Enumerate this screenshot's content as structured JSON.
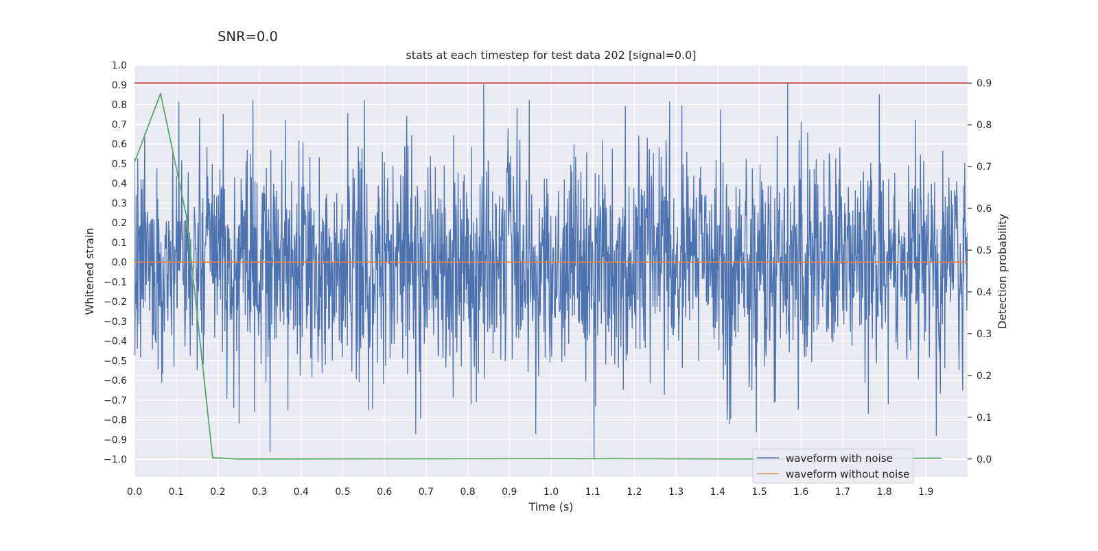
{
  "header": {
    "snr_label": "SNR=0.0"
  },
  "chart_data": {
    "type": "line",
    "title": "stats at each timestep for test data 202 [signal=0.0]",
    "xlabel": "Time (s)",
    "ylabel": "Whitened strain",
    "y2label": "Detection probability",
    "xlim": [
      0.0,
      2.0
    ],
    "ylim": [
      -1.09,
      1.0
    ],
    "y2lim": [
      -0.043,
      0.943
    ],
    "x_ticks": [
      0.0,
      0.1,
      0.2,
      0.3,
      0.4,
      0.5,
      0.6,
      0.7,
      0.8,
      0.9,
      1.0,
      1.1,
      1.2,
      1.3,
      1.4,
      1.5,
      1.6,
      1.7,
      1.8,
      1.9
    ],
    "x_tick_labels": [
      "0.0",
      "0.1",
      "0.2",
      "0.3",
      "0.4",
      "0.5",
      "0.6",
      "0.7",
      "0.8",
      "0.9",
      "1.0",
      "1.1",
      "1.2",
      "1.3",
      "1.4",
      "1.5",
      "1.6",
      "1.7",
      "1.8",
      "1.9"
    ],
    "y_ticks": [
      1.0,
      0.9,
      0.8,
      0.7,
      0.6,
      0.5,
      0.4,
      0.3,
      0.2,
      0.1,
      0.0,
      -0.1,
      -0.2,
      -0.3,
      -0.4,
      -0.5,
      -0.6,
      -0.7,
      -0.8,
      -0.9,
      -1.0
    ],
    "y_tick_labels": [
      "1.0",
      "0.9",
      "0.8",
      "0.7",
      "0.6",
      "0.5",
      "0.4",
      "0.3",
      "0.2",
      "0.1",
      "0.0",
      "−0.1",
      "−0.2",
      "−0.3",
      "−0.4",
      "−0.5",
      "−0.6",
      "−0.7",
      "−0.8",
      "−0.9",
      "−1.0"
    ],
    "y2_ticks": [
      0.9,
      0.8,
      0.7,
      0.6,
      0.5,
      0.4,
      0.3,
      0.2,
      0.1,
      0.0
    ],
    "y2_tick_labels": [
      "0.9",
      "0.8",
      "0.7",
      "0.6",
      "0.5",
      "0.4",
      "0.3",
      "0.2",
      "0.1",
      "0.0"
    ],
    "threshold": {
      "value": 0.9,
      "axis": "right",
      "color": "#c44e52"
    },
    "series": [
      {
        "name": "waveform with noise",
        "axis": "left",
        "color": "#4c72b0",
        "generator": "noise",
        "n_samples": 2048,
        "x_range": [
          0.0,
          2.0
        ],
        "std": 0.27,
        "seed": 202,
        "peaks": [
          {
            "x": 0.838,
            "y": 0.9
          },
          {
            "x": 1.568,
            "y": 0.91
          },
          {
            "x": 0.918,
            "y": 0.78
          },
          {
            "x": 1.788,
            "y": 0.85
          },
          {
            "x": 0.213,
            "y": 0.75
          },
          {
            "x": 1.178,
            "y": 0.79
          },
          {
            "x": 0.362,
            "y": 0.72
          },
          {
            "x": 1.103,
            "y": -1.0
          },
          {
            "x": 0.325,
            "y": -0.96
          },
          {
            "x": 1.493,
            "y": -0.86
          },
          {
            "x": 1.925,
            "y": -0.88
          },
          {
            "x": 0.963,
            "y": -0.87
          },
          {
            "x": 0.675,
            "y": -0.87
          },
          {
            "x": 0.368,
            "y": -0.75
          },
          {
            "x": 0.808,
            "y": -0.72
          },
          {
            "x": 1.107,
            "y": -0.73
          },
          {
            "x": 0.562,
            "y": -0.75
          }
        ]
      },
      {
        "name": "waveform without noise",
        "axis": "left",
        "color": "#dd8452",
        "x": [
          0.0,
          2.0
        ],
        "y": [
          0.0,
          0.0
        ]
      },
      {
        "name": "detection probability",
        "axis": "right",
        "color": "#55a868",
        "x": [
          0.0,
          0.0625,
          0.125,
          0.1875,
          0.25,
          0.3125,
          1.0,
          1.5,
          1.9375
        ],
        "y": [
          0.71,
          0.875,
          0.58,
          0.003,
          0.0,
          0.0,
          0.001,
          0.0,
          0.002
        ]
      }
    ],
    "legend": {
      "placement": "lower-right",
      "entries": [
        {
          "label": "waveform with noise",
          "color": "#4c72b0"
        },
        {
          "label": "waveform without noise",
          "color": "#dd8452"
        }
      ]
    }
  }
}
